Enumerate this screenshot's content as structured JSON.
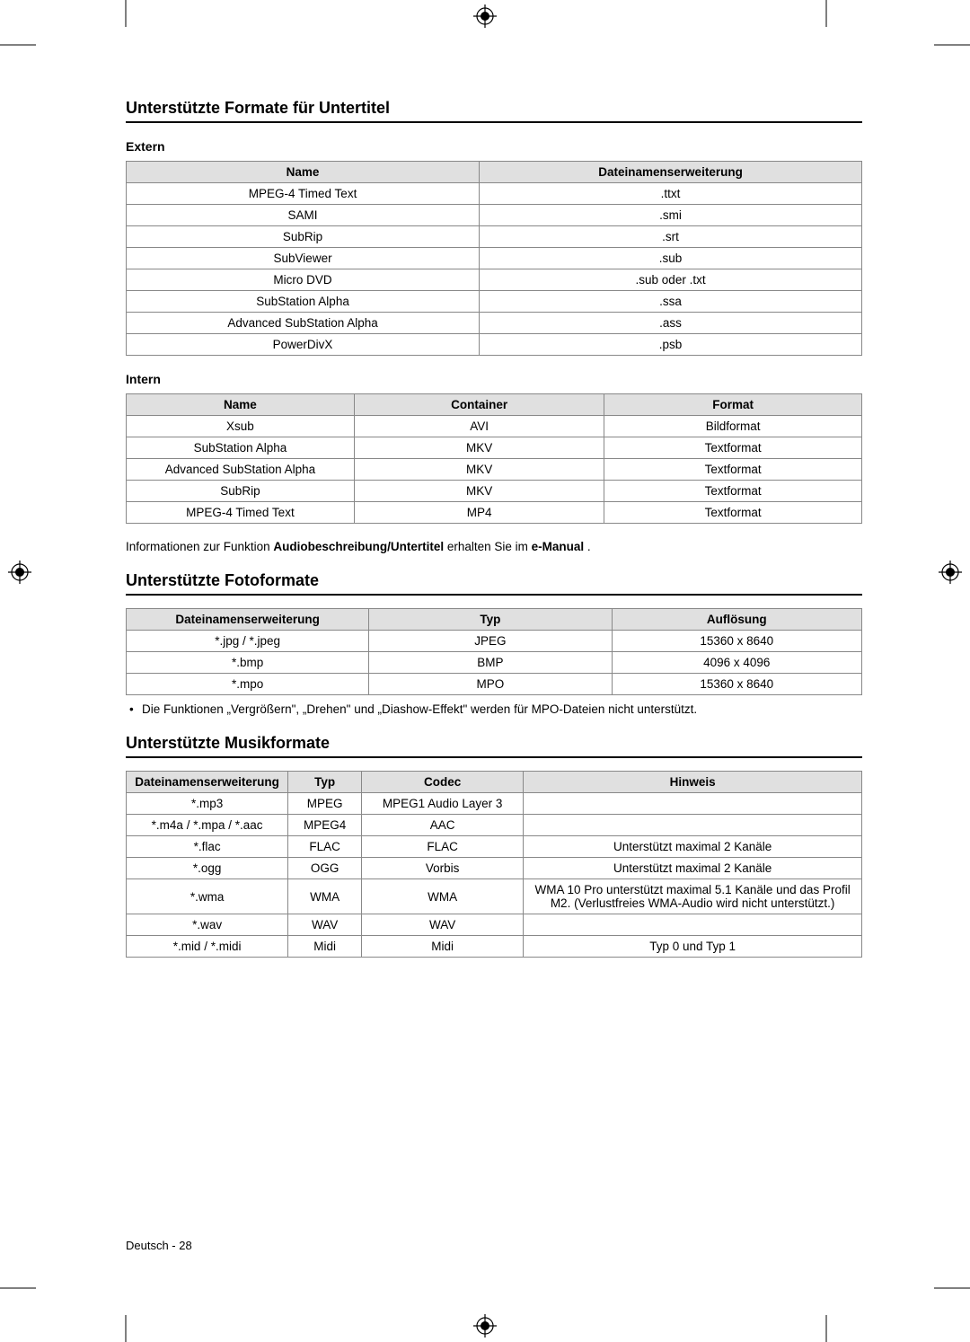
{
  "section1": {
    "heading": "Unterstützte Formate für Untertitel",
    "subheading1": "Extern",
    "table1": {
      "headers": [
        "Name",
        "Dateinamenserweiterung"
      ],
      "rows": [
        [
          "MPEG-4 Timed Text",
          ".ttxt"
        ],
        [
          "SAMI",
          ".smi"
        ],
        [
          "SubRip",
          ".srt"
        ],
        [
          "SubViewer",
          ".sub"
        ],
        [
          "Micro DVD",
          ".sub oder .txt"
        ],
        [
          "SubStation Alpha",
          ".ssa"
        ],
        [
          "Advanced SubStation Alpha",
          ".ass"
        ],
        [
          "PowerDivX",
          ".psb"
        ]
      ]
    },
    "subheading2": "Intern",
    "table2": {
      "headers": [
        "Name",
        "Container",
        "Format"
      ],
      "rows": [
        [
          "Xsub",
          "AVI",
          "Bildformat"
        ],
        [
          "SubStation Alpha",
          "MKV",
          "Textformat"
        ],
        [
          "Advanced SubStation Alpha",
          "MKV",
          "Textformat"
        ],
        [
          "SubRip",
          "MKV",
          "Textformat"
        ],
        [
          "MPEG-4 Timed Text",
          "MP4",
          "Textformat"
        ]
      ]
    },
    "info_prefix": "Informationen zur Funktion ",
    "info_bold1": "Audiobeschreibung/Untertitel",
    "info_mid": " erhalten Sie im ",
    "info_bold2": "e-Manual",
    "info_suffix": " ."
  },
  "section2": {
    "heading": "Unterstützte Fotoformate",
    "table": {
      "headers": [
        "Dateinamenserweiterung",
        "Typ",
        "Auflösung"
      ],
      "rows": [
        [
          "*.jpg / *.jpeg",
          "JPEG",
          "15360 x 8640"
        ],
        [
          "*.bmp",
          "BMP",
          "4096 x 4096"
        ],
        [
          "*.mpo",
          "MPO",
          "15360 x 8640"
        ]
      ]
    },
    "bullet": "Die Funktionen „Vergrößern\", „Drehen\" und „Diashow-Effekt\" werden für MPO-Dateien nicht unterstützt."
  },
  "section3": {
    "heading": "Unterstützte Musikformate",
    "table": {
      "headers": [
        "Dateinamenserweiterung",
        "Typ",
        "Codec",
        "Hinweis"
      ],
      "rows": [
        [
          "*.mp3",
          "MPEG",
          "MPEG1 Audio Layer 3",
          ""
        ],
        [
          "*.m4a / *.mpa / *.aac",
          "MPEG4",
          "AAC",
          ""
        ],
        [
          "*.flac",
          "FLAC",
          "FLAC",
          "Unterstützt maximal 2 Kanäle"
        ],
        [
          "*.ogg",
          "OGG",
          "Vorbis",
          "Unterstützt maximal 2 Kanäle"
        ],
        [
          "*.wma",
          "WMA",
          "WMA",
          "WMA 10 Pro unterstützt maximal 5.1 Kanäle und das Profil M2. (Verlustfreies WMA-Audio wird nicht unterstützt.)"
        ],
        [
          "*.wav",
          "WAV",
          "WAV",
          ""
        ],
        [
          "*.mid / *.midi",
          "Midi",
          "Midi",
          "Typ 0 und Typ 1"
        ]
      ]
    },
    "col_widths": [
      "22%",
      "10%",
      "22%",
      "46%"
    ]
  },
  "footer": "Deutsch - 28",
  "colors": {
    "header_bg": "#e0e0e0",
    "border": "#888888"
  }
}
